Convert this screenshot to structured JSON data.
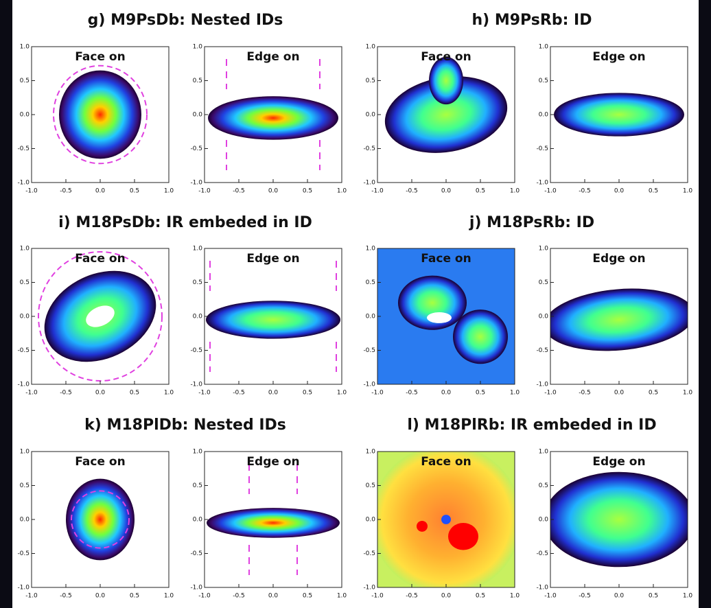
{
  "axes": {
    "xlim": [
      -1,
      1
    ],
    "ylim": [
      -1,
      1
    ],
    "xticks": [
      {
        "value": -1,
        "label": "-1.0"
      },
      {
        "value": -0.5,
        "label": "-0.5"
      },
      {
        "value": 0,
        "label": "0.0"
      },
      {
        "value": 0.5,
        "label": "0.5"
      },
      {
        "value": 1,
        "label": "1.0"
      }
    ],
    "yticks": [
      {
        "value": -1,
        "label": "-1.0"
      },
      {
        "value": -0.5,
        "label": "-0.5"
      },
      {
        "value": 0,
        "label": "0.0"
      },
      {
        "value": 0.5,
        "label": "0.5"
      },
      {
        "value": 1,
        "label": "1.0"
      }
    ]
  },
  "panels": [
    {
      "title": "g) M9PsDb: Nested IDs",
      "views": [
        "Face on",
        "Edge on"
      ]
    },
    {
      "title": "h) M9PsRb: ID",
      "views": [
        "Face on",
        "Edge on"
      ]
    },
    {
      "title": "i) M18PsDb: IR embeded in ID",
      "views": [
        "Face on",
        "Edge on"
      ]
    },
    {
      "title": "j) M18PsRb: ID",
      "views": [
        "Face on",
        "Edge on"
      ]
    },
    {
      "title": "k) M18PlDb: Nested IDs",
      "views": [
        "Face on",
        "Edge on"
      ]
    },
    {
      "title": "l) M18PlRb: IR embeded in ID",
      "views": [
        "Face on",
        "Edge on"
      ]
    }
  ]
}
